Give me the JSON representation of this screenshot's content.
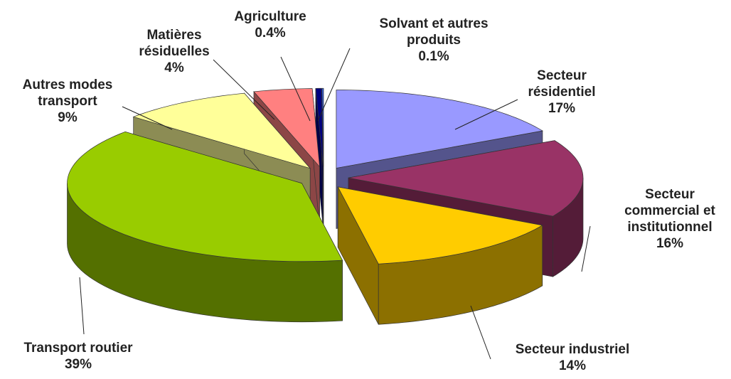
{
  "chart_data": {
    "type": "pie",
    "three_d": true,
    "exploded": true,
    "categories": [
      "Secteur résidentiel",
      "Secteur commercial et institutionnel",
      "Secteur industriel",
      "Transport routier",
      "Autres modes transport",
      "Matières résiduelles",
      "Agriculture",
      "Solvant et autres produits"
    ],
    "values": [
      17,
      16,
      14,
      39,
      9,
      4,
      0.4,
      0.1
    ],
    "value_labels": [
      "17%",
      "16%",
      "14%",
      "39%",
      "9%",
      "4%",
      "0.4%",
      "0.1%"
    ],
    "colors": [
      "#9999ff",
      "#993366",
      "#ffcc00",
      "#99cc00",
      "#ffff99",
      "#ff8080",
      "#000080",
      "#3366ff"
    ]
  }
}
